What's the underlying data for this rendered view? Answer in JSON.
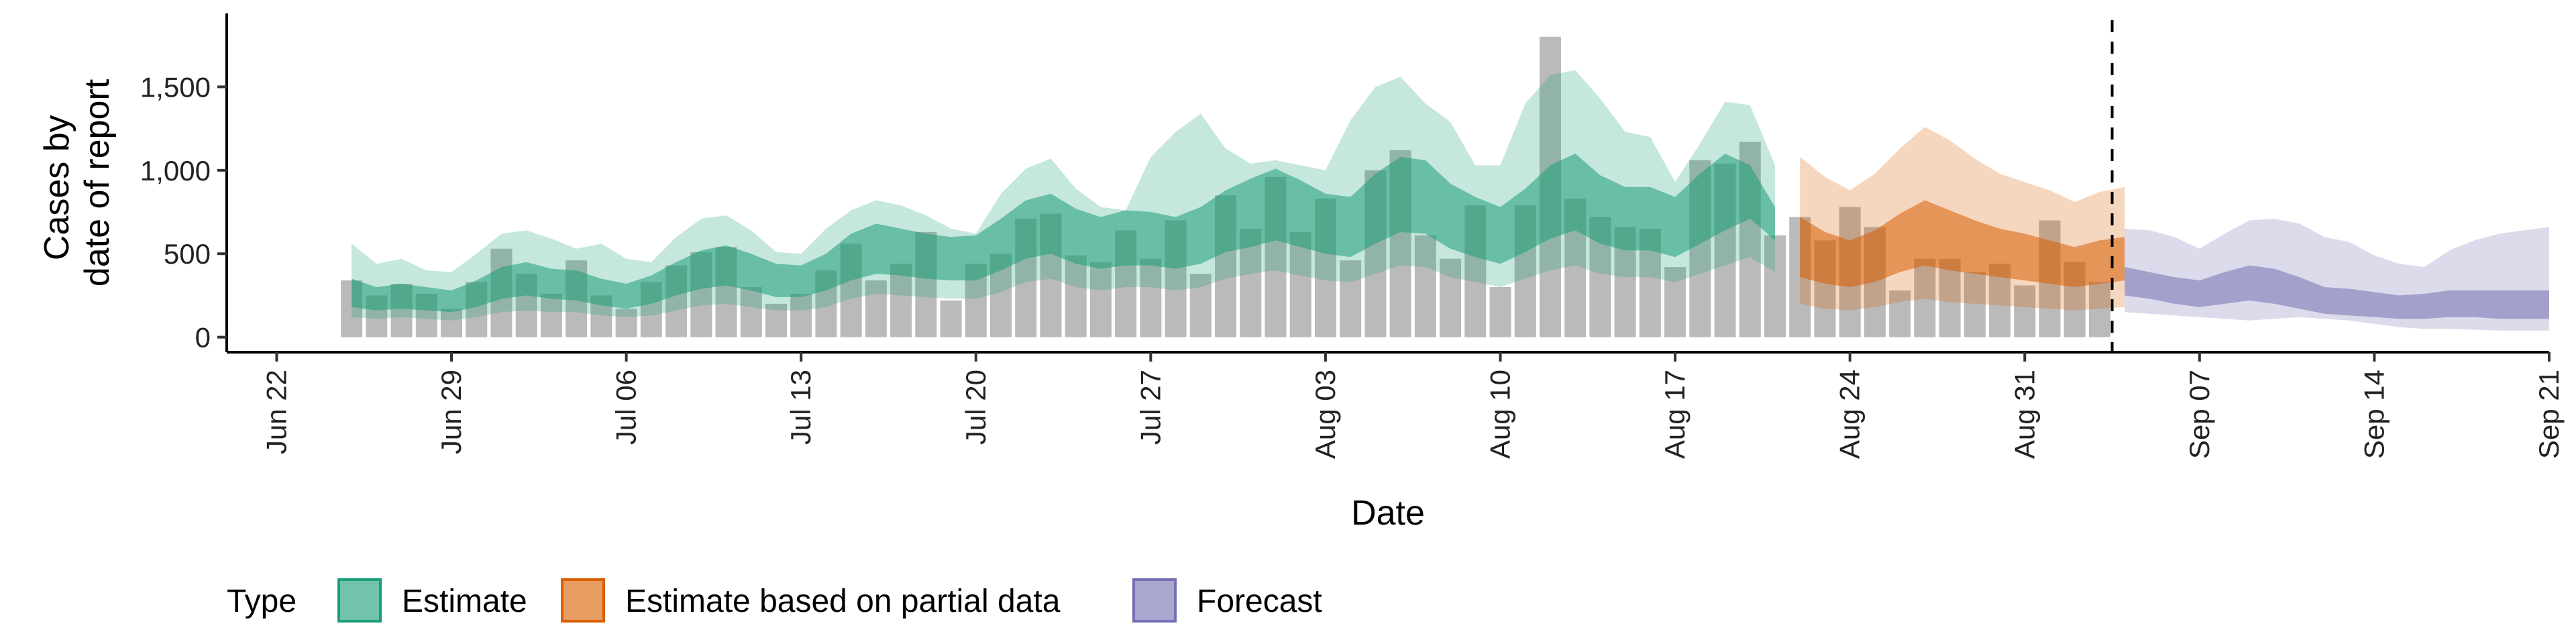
{
  "chart_data": {
    "type": "area",
    "xlabel": "Date",
    "ylabel_lines": [
      "Cases by",
      "date of report"
    ],
    "x_ticks": [
      "Jun 22",
      "Jun 29",
      "Jul 06",
      "Jul 13",
      "Jul 20",
      "Jul 27",
      "Aug 03",
      "Aug 10",
      "Aug 17",
      "Aug 24",
      "Aug 31",
      "Sep 07",
      "Sep 14",
      "Sep 21"
    ],
    "y_ticks": [
      0,
      500,
      1000,
      1500
    ],
    "y_tick_labels": [
      "0",
      "500",
      "1,000",
      "1,500"
    ],
    "ylim": [
      -90,
      1940
    ],
    "xlim": [
      "2020-06-20",
      "2020-09-21"
    ],
    "bar_start": "2020-06-25",
    "bars": [
      340,
      250,
      320,
      260,
      170,
      330,
      530,
      380,
      260,
      460,
      250,
      170,
      330,
      430,
      510,
      540,
      300,
      200,
      260,
      400,
      560,
      340,
      440,
      630,
      220,
      440,
      500,
      710,
      740,
      490,
      450,
      640,
      470,
      700,
      380,
      850,
      650,
      960,
      630,
      830,
      460,
      1000,
      1120,
      610,
      470,
      790,
      300,
      790,
      1800,
      830,
      720,
      660,
      650,
      420,
      1060,
      1040,
      1170,
      610,
      720,
      580,
      780,
      660,
      280,
      470,
      470,
      390,
      440,
      310,
      700,
      450,
      330
    ],
    "bar_color": "#a6a6a6",
    "forecast_split_date": "2020-09-03",
    "series": [
      {
        "name": "Estimate",
        "color": "#1b9e77",
        "x_start": "2020-06-25",
        "lower90": [
          120,
          110,
          120,
          110,
          100,
          120,
          150,
          160,
          150,
          150,
          130,
          120,
          130,
          160,
          190,
          200,
          180,
          160,
          160,
          180,
          230,
          260,
          250,
          240,
          230,
          230,
          270,
          330,
          350,
          300,
          280,
          300,
          300,
          280,
          300,
          350,
          380,
          400,
          370,
          340,
          330,
          380,
          430,
          420,
          360,
          330,
          300,
          350,
          400,
          430,
          380,
          360,
          360,
          330,
          380,
          430,
          480,
          390
        ],
        "lower50": [
          180,
          160,
          170,
          160,
          150,
          180,
          230,
          250,
          230,
          220,
          190,
          170,
          200,
          250,
          290,
          310,
          280,
          240,
          240,
          280,
          340,
          380,
          370,
          350,
          340,
          340,
          400,
          470,
          500,
          440,
          410,
          430,
          430,
          410,
          440,
          510,
          540,
          580,
          540,
          500,
          480,
          560,
          630,
          620,
          530,
          480,
          440,
          510,
          590,
          640,
          560,
          520,
          520,
          480,
          560,
          640,
          710,
          580
        ],
        "upper50": [
          350,
          300,
          320,
          300,
          280,
          340,
          420,
          450,
          410,
          400,
          350,
          320,
          370,
          450,
          520,
          550,
          500,
          440,
          430,
          500,
          620,
          680,
          650,
          620,
          600,
          610,
          710,
          820,
          860,
          770,
          720,
          760,
          750,
          720,
          780,
          880,
          950,
          1010,
          940,
          860,
          840,
          980,
          1080,
          1060,
          920,
          840,
          780,
          890,
          1030,
          1100,
          970,
          900,
          900,
          840,
          980,
          1100,
          1030,
          780
        ],
        "upper90": [
          560,
          440,
          470,
          400,
          390,
          500,
          620,
          640,
          590,
          530,
          560,
          470,
          450,
          600,
          710,
          730,
          640,
          510,
          500,
          650,
          760,
          820,
          790,
          730,
          650,
          620,
          860,
          1010,
          1070,
          890,
          780,
          760,
          1080,
          1230,
          1340,
          1130,
          1040,
          1060,
          1030,
          1000,
          1300,
          1500,
          1560,
          1400,
          1290,
          1030,
          1030,
          1400,
          1570,
          1600,
          1430,
          1230,
          1200,
          930,
          1160,
          1410,
          1390,
          1030
        ]
      },
      {
        "name": "Estimate based on partial data",
        "color": "#d95f02",
        "x_start": "2020-08-22",
        "lower90": [
          200,
          170,
          160,
          180,
          210,
          230,
          210,
          200,
          190,
          180,
          170,
          160,
          170,
          180
        ],
        "lower50": [
          360,
          320,
          300,
          330,
          390,
          430,
          400,
          380,
          360,
          340,
          320,
          300,
          320,
          340
        ],
        "upper50": [
          720,
          630,
          580,
          640,
          740,
          820,
          760,
          700,
          650,
          620,
          580,
          540,
          580,
          600
        ],
        "upper90": [
          1080,
          960,
          880,
          980,
          1130,
          1260,
          1180,
          1070,
          980,
          930,
          880,
          810,
          870,
          900
        ]
      },
      {
        "name": "Forecast",
        "color": "#7570b3",
        "x_start": "2020-09-04",
        "lower90": [
          150,
          140,
          130,
          120,
          110,
          100,
          110,
          120,
          110,
          100,
          80,
          60,
          50,
          50,
          45,
          40,
          40,
          40
        ],
        "lower50": [
          250,
          230,
          200,
          180,
          200,
          220,
          200,
          170,
          140,
          130,
          120,
          110,
          110,
          120,
          120,
          110,
          110,
          110
        ],
        "upper50": [
          420,
          390,
          360,
          340,
          390,
          430,
          410,
          360,
          300,
          290,
          270,
          250,
          260,
          280,
          280,
          280,
          280,
          280
        ],
        "upper90": [
          650,
          640,
          600,
          530,
          620,
          700,
          710,
          680,
          600,
          570,
          490,
          440,
          420,
          520,
          580,
          620,
          640,
          660
        ]
      }
    ],
    "legend": {
      "title": "Type",
      "position": "bottom",
      "items": [
        "Estimate",
        "Estimate based on partial data",
        "Forecast"
      ]
    }
  }
}
